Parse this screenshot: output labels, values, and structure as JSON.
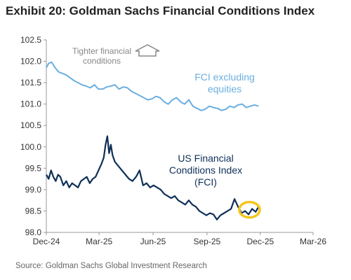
{
  "header": {
    "title": "Exhibit 20: Goldman Sachs Financial Conditions Index",
    "source": "Source: Goldman Sachs Global Investment Research"
  },
  "colors": {
    "fci": "#0d2f57",
    "fci_ex_equities": "#6aaee0",
    "highlight_circle": "#f4c51c",
    "axis": "#999999",
    "annotation": "#888888"
  },
  "icons": {
    "up_arrow": "outline-up-arrow-icon"
  },
  "chart_data": {
    "type": "line",
    "title": "Exhibit 20: Goldman Sachs Financial Conditions Index",
    "xlabel": "",
    "ylabel": "",
    "xlim": [
      "2024-12-01",
      "2026-03-01"
    ],
    "ylim": [
      98.0,
      102.5
    ],
    "x_ticks": [
      "Dec-24",
      "Mar-25",
      "Jun-25",
      "Sep-25",
      "Dec-25",
      "Mar-26"
    ],
    "y_ticks": [
      "98.0",
      "98.5",
      "99.0",
      "99.5",
      "100.0",
      "100.5",
      "101.0",
      "101.5",
      "102.0",
      "102.5"
    ],
    "grid": false,
    "legend": "none",
    "series": [
      {
        "name": "FCI excluding equities",
        "label_lines": [
          "FCI excluding",
          "equities"
        ],
        "points": [
          [
            "2024-12-01",
            101.85
          ],
          [
            "2024-12-05",
            101.95
          ],
          [
            "2024-12-10",
            101.98
          ],
          [
            "2024-12-16",
            101.85
          ],
          [
            "2024-12-22",
            101.75
          ],
          [
            "2024-12-28",
            101.72
          ],
          [
            "2025-01-04",
            101.68
          ],
          [
            "2025-01-10",
            101.62
          ],
          [
            "2025-01-17",
            101.55
          ],
          [
            "2025-01-24",
            101.5
          ],
          [
            "2025-01-31",
            101.45
          ],
          [
            "2025-02-07",
            101.42
          ],
          [
            "2025-02-14",
            101.38
          ],
          [
            "2025-02-21",
            101.45
          ],
          [
            "2025-02-28",
            101.35
          ],
          [
            "2025-03-07",
            101.35
          ],
          [
            "2025-03-14",
            101.4
          ],
          [
            "2025-03-21",
            101.42
          ],
          [
            "2025-03-28",
            101.45
          ],
          [
            "2025-04-04",
            101.35
          ],
          [
            "2025-04-11",
            101.4
          ],
          [
            "2025-04-18",
            101.38
          ],
          [
            "2025-04-25",
            101.3
          ],
          [
            "2025-05-02",
            101.25
          ],
          [
            "2025-05-09",
            101.2
          ],
          [
            "2025-05-16",
            101.15
          ],
          [
            "2025-05-23",
            101.1
          ],
          [
            "2025-05-30",
            101.12
          ],
          [
            "2025-06-06",
            101.18
          ],
          [
            "2025-06-13",
            101.15
          ],
          [
            "2025-06-20",
            101.05
          ],
          [
            "2025-06-27",
            101.0
          ],
          [
            "2025-07-04",
            101.1
          ],
          [
            "2025-07-11",
            101.15
          ],
          [
            "2025-07-18",
            101.05
          ],
          [
            "2025-07-25",
            101.0
          ],
          [
            "2025-08-01",
            101.1
          ],
          [
            "2025-08-08",
            100.95
          ],
          [
            "2025-08-15",
            100.9
          ],
          [
            "2025-08-22",
            100.85
          ],
          [
            "2025-08-29",
            100.88
          ],
          [
            "2025-09-05",
            100.95
          ],
          [
            "2025-09-12",
            100.92
          ],
          [
            "2025-09-19",
            100.9
          ],
          [
            "2025-09-26",
            100.85
          ],
          [
            "2025-10-03",
            100.88
          ],
          [
            "2025-10-10",
            100.95
          ],
          [
            "2025-10-17",
            100.92
          ],
          [
            "2025-10-24",
            100.98
          ],
          [
            "2025-10-31",
            101.0
          ],
          [
            "2025-11-07",
            100.92
          ],
          [
            "2025-11-14",
            100.95
          ],
          [
            "2025-11-21",
            100.98
          ],
          [
            "2025-11-28",
            100.95
          ]
        ]
      },
      {
        "name": "US Financial Conditions Index (FCI)",
        "label_lines": [
          "US Financial",
          "Conditions Index",
          "(FCI)"
        ],
        "points": [
          [
            "2024-12-01",
            99.35
          ],
          [
            "2024-12-05",
            99.25
          ],
          [
            "2024-12-09",
            99.45
          ],
          [
            "2024-12-13",
            99.3
          ],
          [
            "2024-12-17",
            99.2
          ],
          [
            "2024-12-21",
            99.35
          ],
          [
            "2024-12-25",
            99.3
          ],
          [
            "2024-12-30",
            99.1
          ],
          [
            "2025-01-04",
            99.2
          ],
          [
            "2025-01-09",
            99.05
          ],
          [
            "2025-01-14",
            99.15
          ],
          [
            "2025-01-19",
            99.1
          ],
          [
            "2025-01-24",
            99.05
          ],
          [
            "2025-01-29",
            99.2
          ],
          [
            "2025-02-03",
            99.25
          ],
          [
            "2025-02-08",
            99.3
          ],
          [
            "2025-02-13",
            99.15
          ],
          [
            "2025-02-18",
            99.25
          ],
          [
            "2025-02-23",
            99.3
          ],
          [
            "2025-02-28",
            99.45
          ],
          [
            "2025-03-05",
            99.6
          ],
          [
            "2025-03-09",
            99.75
          ],
          [
            "2025-03-12",
            100.05
          ],
          [
            "2025-03-15",
            100.25
          ],
          [
            "2025-03-18",
            99.85
          ],
          [
            "2025-03-21",
            100.05
          ],
          [
            "2025-03-24",
            99.8
          ],
          [
            "2025-03-28",
            99.65
          ],
          [
            "2025-04-03",
            99.55
          ],
          [
            "2025-04-09",
            99.45
          ],
          [
            "2025-04-15",
            99.35
          ],
          [
            "2025-04-21",
            99.25
          ],
          [
            "2025-04-27",
            99.2
          ],
          [
            "2025-05-03",
            99.3
          ],
          [
            "2025-05-09",
            99.45
          ],
          [
            "2025-05-15",
            99.1
          ],
          [
            "2025-05-21",
            99.15
          ],
          [
            "2025-05-27",
            99.05
          ],
          [
            "2025-06-02",
            99.1
          ],
          [
            "2025-06-08",
            99.05
          ],
          [
            "2025-06-14",
            99.0
          ],
          [
            "2025-06-20",
            98.9
          ],
          [
            "2025-06-26",
            98.85
          ],
          [
            "2025-07-02",
            98.8
          ],
          [
            "2025-07-08",
            98.85
          ],
          [
            "2025-07-14",
            98.75
          ],
          [
            "2025-07-20",
            98.7
          ],
          [
            "2025-07-26",
            98.65
          ],
          [
            "2025-08-01",
            98.75
          ],
          [
            "2025-08-07",
            98.65
          ],
          [
            "2025-08-13",
            98.6
          ],
          [
            "2025-08-19",
            98.5
          ],
          [
            "2025-08-25",
            98.45
          ],
          [
            "2025-08-31",
            98.4
          ],
          [
            "2025-09-06",
            98.45
          ],
          [
            "2025-09-12",
            98.42
          ],
          [
            "2025-09-18",
            98.3
          ],
          [
            "2025-09-24",
            98.4
          ],
          [
            "2025-09-30",
            98.45
          ],
          [
            "2025-10-06",
            98.5
          ],
          [
            "2025-10-12",
            98.55
          ],
          [
            "2025-10-18",
            98.78
          ],
          [
            "2025-10-24",
            98.6
          ],
          [
            "2025-10-30",
            98.45
          ],
          [
            "2025-11-05",
            98.5
          ],
          [
            "2025-11-11",
            98.42
          ],
          [
            "2025-11-17",
            98.55
          ],
          [
            "2025-11-23",
            98.48
          ],
          [
            "2025-11-28",
            98.6
          ]
        ]
      }
    ],
    "annotations": {
      "tighter": [
        "Tighter financial",
        "conditions"
      ],
      "highlight_circle": {
        "x_start": "2025-10-26",
        "x_end": "2025-11-30",
        "y": 98.53
      }
    }
  }
}
